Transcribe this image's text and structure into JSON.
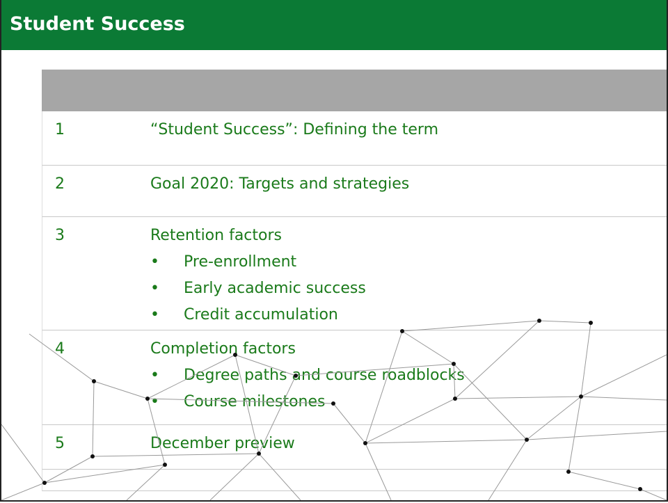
{
  "header": {
    "title": "Student Success"
  },
  "table": {
    "rows": [
      {
        "number": "1",
        "topic": "“Student Success”: Defining the term",
        "bullets": []
      },
      {
        "number": "2",
        "topic": "Goal 2020: Targets and strategies",
        "bullets": []
      },
      {
        "number": "3",
        "topic": "Retention factors",
        "bullets": [
          "Pre-enrollment",
          "Early academic success",
          "Credit accumulation"
        ]
      },
      {
        "number": "4",
        "topic": "Completion factors",
        "bullets": [
          "Degree paths and course roadblocks",
          "Course milestones"
        ]
      },
      {
        "number": "5",
        "topic": "December preview",
        "bullets": []
      }
    ]
  }
}
